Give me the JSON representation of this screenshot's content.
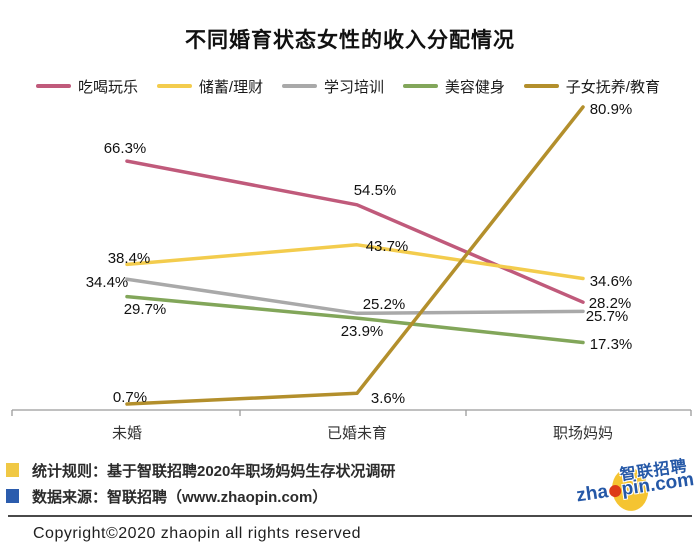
{
  "title": "不同婚育状态女性的收入分配情况",
  "chart_data": {
    "type": "line",
    "categories": [
      "未婚",
      "已婚未育",
      "职场妈妈"
    ],
    "series": [
      {
        "name": "吃喝玩乐",
        "color": "#c05a7b",
        "values": [
          66.3,
          54.5,
          28.2
        ]
      },
      {
        "name": "储蓄/理财",
        "color": "#f3cc4d",
        "values": [
          38.4,
          43.7,
          34.6
        ]
      },
      {
        "name": "学习培训",
        "color": "#a9a9a9",
        "values": [
          34.4,
          25.2,
          25.7
        ]
      },
      {
        "name": "美容健身",
        "color": "#82a65a",
        "values": [
          29.7,
          23.9,
          17.3
        ]
      },
      {
        "name": "子女抚养/教育",
        "color": "#b38f2c",
        "values": [
          0.7,
          3.6,
          80.9
        ]
      }
    ],
    "unit": "%",
    "value_label_suffix": "%",
    "legend_position": "top",
    "grid": false,
    "y_axis_visible": false,
    "ylim": [
      0,
      85
    ],
    "axis_color": "#9b9b9b",
    "label_color": "#111111",
    "category_color": "#333333"
  },
  "footer": {
    "notes": [
      {
        "marker_color": "#f0c845",
        "text": "统计规则：基于智联招聘2020年职场妈妈生存状况调研"
      },
      {
        "marker_color": "#2b5cad",
        "text": "数据来源：智联招聘（www.zhaopin.com）"
      }
    ],
    "copyright": "Copyright©2020  zhaopin all rights reserved"
  },
  "logo": {
    "cn": "智联招聘",
    "en_parts": [
      "zha",
      "pin.com"
    ],
    "blue": "#2558a7",
    "yellow": "#f5c431",
    "red": "#dd3b17"
  }
}
